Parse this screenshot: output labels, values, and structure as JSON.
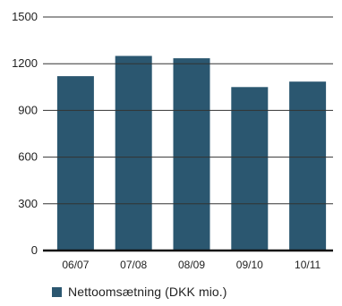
{
  "chart_data": {
    "type": "bar",
    "categories": [
      "06/07",
      "07/08",
      "08/09",
      "09/10",
      "10/11"
    ],
    "series": [
      {
        "name": "Nettoomsætning (DKK mio.)",
        "values": [
          1120,
          1250,
          1235,
          1050,
          1085
        ]
      }
    ],
    "ylim": [
      0,
      1500
    ],
    "yticks": [
      0,
      300,
      600,
      900,
      1200,
      1500
    ],
    "grid": true,
    "legend": "bottom-left",
    "colors": {
      "bar": "#2b5770",
      "grid": "#333333",
      "axis": "#111111"
    }
  },
  "legend": {
    "label": "Nettoomsætning (DKK mio.)"
  }
}
